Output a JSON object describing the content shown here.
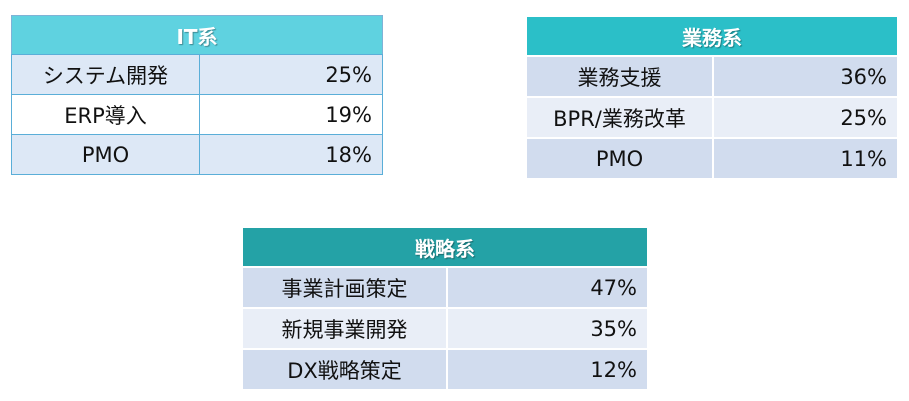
{
  "it_table": {
    "title": "IT系",
    "rows": [
      {
        "label": "システム開発",
        "value": "25%"
      },
      {
        "label": "ERP導入",
        "value": "19%"
      },
      {
        "label": "PMO",
        "value": "18%"
      }
    ]
  },
  "business_table": {
    "title": "業務系",
    "rows": [
      {
        "label": "業務支援",
        "value": "36%"
      },
      {
        "label": "BPR/業務改革",
        "value": "25%"
      },
      {
        "label": "PMO",
        "value": "11%"
      }
    ]
  },
  "strategy_table": {
    "title": "戦略系",
    "rows": [
      {
        "label": "事業計画策定",
        "value": "47%"
      },
      {
        "label": "新規事業開発",
        "value": "35%"
      },
      {
        "label": "DX戦略策定",
        "value": "12%"
      }
    ]
  },
  "colors": {
    "it_header": "#5fd2e0",
    "business_header": "#2bbfc8",
    "strategy_header": "#24a2a6",
    "row_shade": "#d1dcee"
  }
}
